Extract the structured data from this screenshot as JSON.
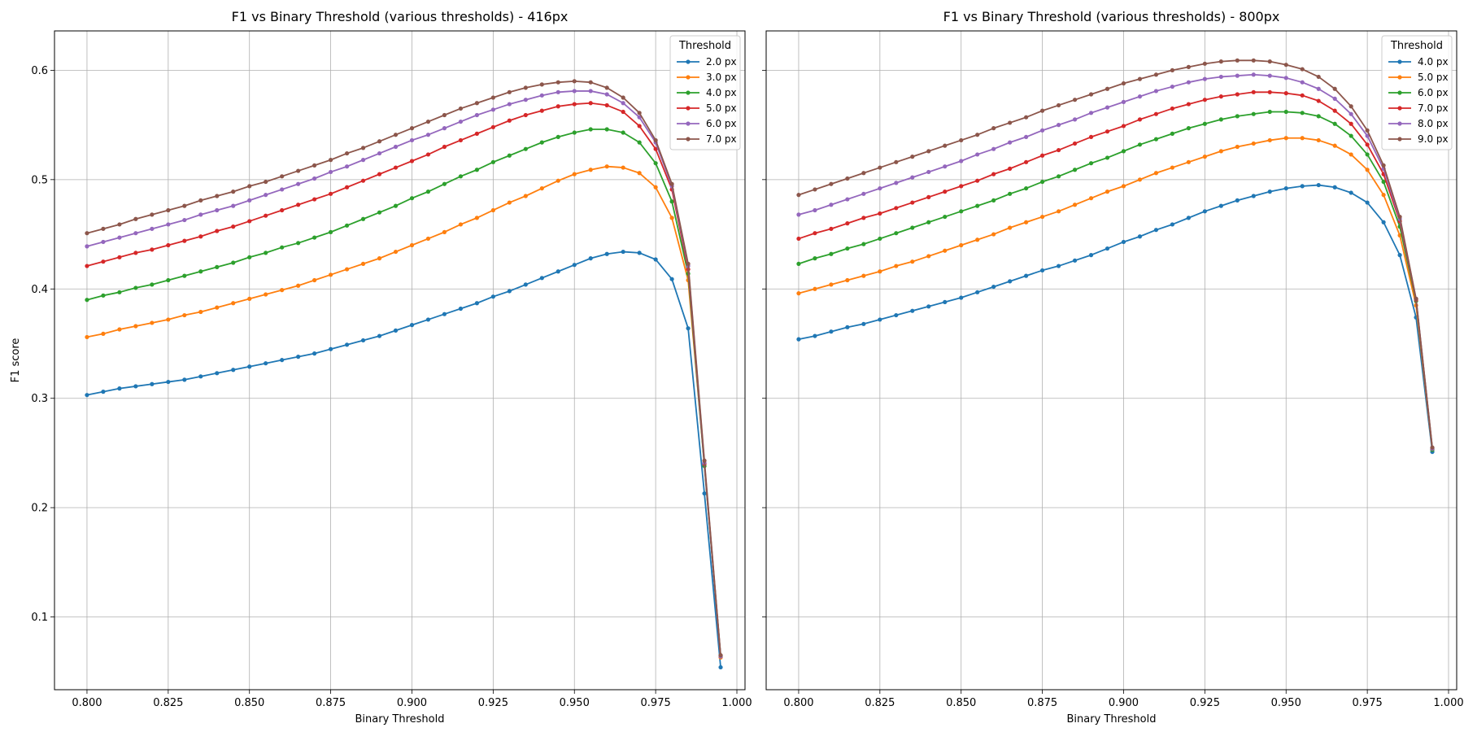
{
  "chart_data": [
    {
      "type": "line",
      "title": "F1 vs Binary Threshold (various thresholds) - 416px",
      "xlabel": "Binary Threshold",
      "ylabel": "F1 score",
      "xlim": [
        0.79,
        1.0025
      ],
      "ylim": [
        0.0335,
        0.636
      ],
      "xticks": [
        "0.800",
        "0.825",
        "0.850",
        "0.875",
        "0.900",
        "0.925",
        "0.950",
        "0.975",
        "1.000"
      ],
      "yticks": [
        "0.1",
        "0.2",
        "0.3",
        "0.4",
        "0.5",
        "0.6"
      ],
      "grid": true,
      "legend": {
        "title": "Threshold",
        "placement": "top-right"
      },
      "x": [
        0.8,
        0.805,
        0.81,
        0.815,
        0.82,
        0.825,
        0.83,
        0.835,
        0.84,
        0.845,
        0.85,
        0.855,
        0.86,
        0.865,
        0.87,
        0.875,
        0.88,
        0.885,
        0.89,
        0.895,
        0.9,
        0.905,
        0.91,
        0.915,
        0.92,
        0.925,
        0.93,
        0.935,
        0.94,
        0.945,
        0.95,
        0.955,
        0.96,
        0.965,
        0.97,
        0.975,
        0.98,
        0.985,
        0.99,
        0.995
      ],
      "series": [
        {
          "name": "2.0 px",
          "color": "#1f77b4",
          "values": [
            0.303,
            0.306,
            0.309,
            0.311,
            0.313,
            0.315,
            0.317,
            0.32,
            0.323,
            0.326,
            0.329,
            0.332,
            0.335,
            0.338,
            0.341,
            0.345,
            0.349,
            0.353,
            0.357,
            0.362,
            0.367,
            0.372,
            0.377,
            0.382,
            0.387,
            0.393,
            0.398,
            0.404,
            0.41,
            0.416,
            0.422,
            0.428,
            0.432,
            0.434,
            0.433,
            0.427,
            0.409,
            0.364,
            0.213,
            0.054
          ]
        },
        {
          "name": "3.0 px",
          "color": "#ff7f0e",
          "values": [
            0.356,
            0.359,
            0.363,
            0.366,
            0.369,
            0.372,
            0.376,
            0.379,
            0.383,
            0.387,
            0.391,
            0.395,
            0.399,
            0.403,
            0.408,
            0.413,
            0.418,
            0.423,
            0.428,
            0.434,
            0.44,
            0.446,
            0.452,
            0.459,
            0.465,
            0.472,
            0.479,
            0.485,
            0.492,
            0.499,
            0.505,
            0.509,
            0.512,
            0.511,
            0.506,
            0.493,
            0.465,
            0.408,
            0.24,
            0.063
          ]
        },
        {
          "name": "4.0 px",
          "color": "#2ca02c",
          "values": [
            0.39,
            0.394,
            0.397,
            0.401,
            0.404,
            0.408,
            0.412,
            0.416,
            0.42,
            0.424,
            0.429,
            0.433,
            0.438,
            0.442,
            0.447,
            0.452,
            0.458,
            0.464,
            0.47,
            0.476,
            0.483,
            0.489,
            0.496,
            0.503,
            0.509,
            0.516,
            0.522,
            0.528,
            0.534,
            0.539,
            0.543,
            0.546,
            0.546,
            0.543,
            0.534,
            0.515,
            0.48,
            0.414,
            0.238,
            0.064
          ]
        },
        {
          "name": "5.0 px",
          "color": "#d62728",
          "values": [
            0.421,
            0.425,
            0.429,
            0.433,
            0.436,
            0.44,
            0.444,
            0.448,
            0.453,
            0.457,
            0.462,
            0.467,
            0.472,
            0.477,
            0.482,
            0.487,
            0.493,
            0.499,
            0.505,
            0.511,
            0.517,
            0.523,
            0.53,
            0.536,
            0.542,
            0.548,
            0.554,
            0.559,
            0.563,
            0.567,
            0.569,
            0.57,
            0.568,
            0.562,
            0.549,
            0.528,
            0.491,
            0.418,
            0.24,
            0.064
          ]
        },
        {
          "name": "6.0 px",
          "color": "#9467bd",
          "values": [
            0.439,
            0.443,
            0.447,
            0.451,
            0.455,
            0.459,
            0.463,
            0.468,
            0.472,
            0.476,
            0.481,
            0.486,
            0.491,
            0.496,
            0.501,
            0.507,
            0.512,
            0.518,
            0.524,
            0.53,
            0.536,
            0.541,
            0.547,
            0.553,
            0.559,
            0.564,
            0.569,
            0.573,
            0.577,
            0.58,
            0.581,
            0.581,
            0.578,
            0.57,
            0.557,
            0.534,
            0.494,
            0.421,
            0.241,
            0.064
          ]
        },
        {
          "name": "7.0 px",
          "color": "#8c564b",
          "values": [
            0.451,
            0.455,
            0.459,
            0.464,
            0.468,
            0.472,
            0.476,
            0.481,
            0.485,
            0.489,
            0.494,
            0.498,
            0.503,
            0.508,
            0.513,
            0.518,
            0.524,
            0.529,
            0.535,
            0.541,
            0.547,
            0.553,
            0.559,
            0.565,
            0.57,
            0.575,
            0.58,
            0.584,
            0.587,
            0.589,
            0.59,
            0.589,
            0.584,
            0.575,
            0.561,
            0.536,
            0.496,
            0.423,
            0.243,
            0.065
          ]
        }
      ]
    },
    {
      "type": "line",
      "title": "F1 vs Binary Threshold (various thresholds) - 800px",
      "xlabel": "Binary Threshold",
      "ylabel": "",
      "xlim": [
        0.79,
        1.0025
      ],
      "ylim": [
        0.0335,
        0.636
      ],
      "xticks": [
        "0.800",
        "0.825",
        "0.850",
        "0.875",
        "0.900",
        "0.925",
        "0.950",
        "0.975",
        "1.000"
      ],
      "yticks": [],
      "grid": true,
      "legend": {
        "title": "Threshold",
        "placement": "top-right"
      },
      "x": [
        0.8,
        0.805,
        0.81,
        0.815,
        0.82,
        0.825,
        0.83,
        0.835,
        0.84,
        0.845,
        0.85,
        0.855,
        0.86,
        0.865,
        0.87,
        0.875,
        0.88,
        0.885,
        0.89,
        0.895,
        0.9,
        0.905,
        0.91,
        0.915,
        0.92,
        0.925,
        0.93,
        0.935,
        0.94,
        0.945,
        0.95,
        0.955,
        0.96,
        0.965,
        0.97,
        0.975,
        0.98,
        0.985,
        0.99,
        0.995
      ],
      "series": [
        {
          "name": "4.0 px",
          "color": "#1f77b4",
          "values": [
            0.354,
            0.357,
            0.361,
            0.365,
            0.368,
            0.372,
            0.376,
            0.38,
            0.384,
            0.388,
            0.392,
            0.397,
            0.402,
            0.407,
            0.412,
            0.417,
            0.421,
            0.426,
            0.431,
            0.437,
            0.443,
            0.448,
            0.454,
            0.459,
            0.465,
            0.471,
            0.476,
            0.481,
            0.485,
            0.489,
            0.492,
            0.494,
            0.495,
            0.493,
            0.488,
            0.479,
            0.461,
            0.431,
            0.374,
            0.251
          ]
        },
        {
          "name": "5.0 px",
          "color": "#ff7f0e",
          "values": [
            0.396,
            0.4,
            0.404,
            0.408,
            0.412,
            0.416,
            0.421,
            0.425,
            0.43,
            0.435,
            0.44,
            0.445,
            0.45,
            0.456,
            0.461,
            0.466,
            0.471,
            0.477,
            0.483,
            0.489,
            0.494,
            0.5,
            0.506,
            0.511,
            0.516,
            0.521,
            0.526,
            0.53,
            0.533,
            0.536,
            0.538,
            0.538,
            0.536,
            0.531,
            0.523,
            0.509,
            0.486,
            0.449,
            0.385,
            0.253
          ]
        },
        {
          "name": "6.0 px",
          "color": "#2ca02c",
          "values": [
            0.423,
            0.428,
            0.432,
            0.437,
            0.441,
            0.446,
            0.451,
            0.456,
            0.461,
            0.466,
            0.471,
            0.476,
            0.481,
            0.487,
            0.492,
            0.498,
            0.503,
            0.509,
            0.515,
            0.52,
            0.526,
            0.532,
            0.537,
            0.542,
            0.547,
            0.551,
            0.555,
            0.558,
            0.56,
            0.562,
            0.562,
            0.561,
            0.558,
            0.551,
            0.54,
            0.523,
            0.498,
            0.457,
            0.389,
            0.253
          ]
        },
        {
          "name": "7.0 px",
          "color": "#d62728",
          "values": [
            0.446,
            0.451,
            0.455,
            0.46,
            0.465,
            0.469,
            0.474,
            0.479,
            0.484,
            0.489,
            0.494,
            0.499,
            0.505,
            0.51,
            0.516,
            0.522,
            0.527,
            0.533,
            0.539,
            0.544,
            0.549,
            0.555,
            0.56,
            0.565,
            0.569,
            0.573,
            0.576,
            0.578,
            0.58,
            0.58,
            0.579,
            0.577,
            0.572,
            0.563,
            0.551,
            0.532,
            0.505,
            0.462,
            0.39,
            0.254
          ]
        },
        {
          "name": "8.0 px",
          "color": "#9467bd",
          "values": [
            0.468,
            0.472,
            0.477,
            0.482,
            0.487,
            0.492,
            0.497,
            0.502,
            0.507,
            0.512,
            0.517,
            0.523,
            0.528,
            0.534,
            0.539,
            0.545,
            0.55,
            0.555,
            0.561,
            0.566,
            0.571,
            0.576,
            0.581,
            0.585,
            0.589,
            0.592,
            0.594,
            0.595,
            0.596,
            0.595,
            0.593,
            0.589,
            0.583,
            0.574,
            0.56,
            0.54,
            0.51,
            0.464,
            0.391,
            0.254
          ]
        },
        {
          "name": "9.0 px",
          "color": "#8c564b",
          "values": [
            0.486,
            0.491,
            0.496,
            0.501,
            0.506,
            0.511,
            0.516,
            0.521,
            0.526,
            0.531,
            0.536,
            0.541,
            0.547,
            0.552,
            0.557,
            0.563,
            0.568,
            0.573,
            0.578,
            0.583,
            0.588,
            0.592,
            0.596,
            0.6,
            0.603,
            0.606,
            0.608,
            0.609,
            0.609,
            0.608,
            0.605,
            0.601,
            0.594,
            0.583,
            0.567,
            0.545,
            0.513,
            0.466,
            0.391,
            0.255
          ]
        }
      ]
    }
  ]
}
